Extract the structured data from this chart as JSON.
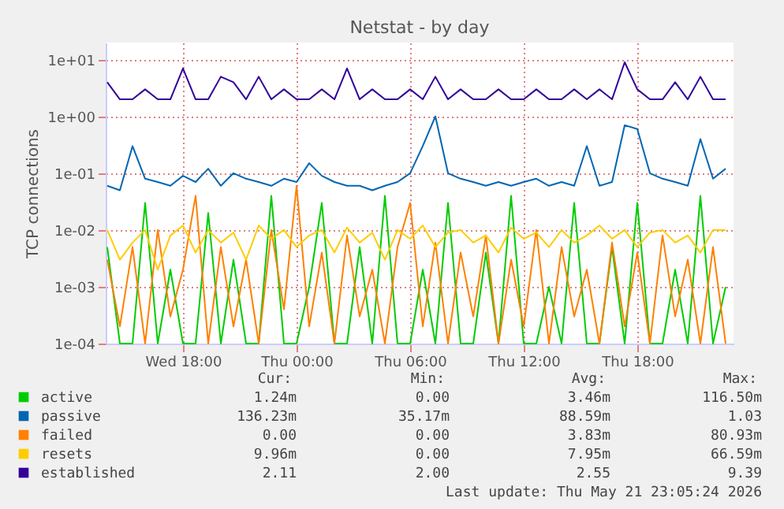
{
  "chart_data": {
    "type": "line",
    "title": "Netstat - by day",
    "ylabel": "TCP connections",
    "log": true,
    "grid": true,
    "legend": "bottom",
    "xlim": [
      "2026-05-20T13:55",
      "2026-05-21T23:05"
    ],
    "xticks": [
      {
        "value": "2026-05-20T18:00",
        "label": "Wed 18:00"
      },
      {
        "value": "2026-05-21T00:00",
        "label": "Thu 00:00"
      },
      {
        "value": "2026-05-21T06:00",
        "label": "Thu 06:00"
      },
      {
        "value": "2026-05-21T12:00",
        "label": "Thu 12:00"
      },
      {
        "value": "2026-05-21T18:00",
        "label": "Thu 18:00"
      }
    ],
    "ylim": [
      0.0001,
      20
    ],
    "yticks": [
      {
        "value": 0.0001,
        "label": "1e-04"
      },
      {
        "value": 0.001,
        "label": "1e-03"
      },
      {
        "value": 0.01,
        "label": "1e-02"
      },
      {
        "value": 0.1,
        "label": "1e-01"
      },
      {
        "value": 1,
        "label": "1e+00"
      },
      {
        "value": 10,
        "label": "1e+01"
      }
    ],
    "x": [
      "2026-05-20T14:00",
      "2026-05-20T14:40",
      "2026-05-20T15:20",
      "2026-05-20T16:00",
      "2026-05-20T16:40",
      "2026-05-20T17:20",
      "2026-05-20T18:00",
      "2026-05-20T18:40",
      "2026-05-20T19:20",
      "2026-05-20T20:00",
      "2026-05-20T20:40",
      "2026-05-20T21:20",
      "2026-05-20T22:00",
      "2026-05-20T22:40",
      "2026-05-20T23:20",
      "2026-05-21T00:00",
      "2026-05-21T00:40",
      "2026-05-21T01:20",
      "2026-05-21T02:00",
      "2026-05-21T02:40",
      "2026-05-21T03:20",
      "2026-05-21T04:00",
      "2026-05-21T04:40",
      "2026-05-21T05:20",
      "2026-05-21T06:00",
      "2026-05-21T06:40",
      "2026-05-21T07:20",
      "2026-05-21T08:00",
      "2026-05-21T08:40",
      "2026-05-21T09:20",
      "2026-05-21T10:00",
      "2026-05-21T10:40",
      "2026-05-21T11:20",
      "2026-05-21T12:00",
      "2026-05-21T12:40",
      "2026-05-21T13:20",
      "2026-05-21T14:00",
      "2026-05-21T14:40",
      "2026-05-21T15:20",
      "2026-05-21T16:00",
      "2026-05-21T16:40",
      "2026-05-21T17:20",
      "2026-05-21T18:00",
      "2026-05-21T18:40",
      "2026-05-21T19:20",
      "2026-05-21T20:00",
      "2026-05-21T20:40",
      "2026-05-21T21:20",
      "2026-05-21T22:00",
      "2026-05-21T22:40"
    ],
    "series": [
      {
        "name": "active",
        "color": "#00cc00",
        "values": [
          0.005,
          0.0001,
          0.0001,
          0.03,
          0.0001,
          0.002,
          0.0001,
          0.0001,
          0.02,
          0.0001,
          0.003,
          0.0001,
          0.0001,
          0.04,
          0.0001,
          0.0001,
          0.001,
          0.03,
          0.0001,
          0.0001,
          0.005,
          0.0001,
          0.04,
          0.0001,
          0.0001,
          0.002,
          0.0001,
          0.03,
          0.0001,
          0.0001,
          0.004,
          0.0001,
          0.04,
          0.0001,
          0.0001,
          0.001,
          0.0001,
          0.03,
          0.0001,
          0.0001,
          0.005,
          0.0001,
          0.03,
          0.0001,
          0.0001,
          0.002,
          0.0001,
          0.04,
          0.0001,
          0.001
        ]
      },
      {
        "name": "passive",
        "color": "#0066b3",
        "values": [
          0.06,
          0.05,
          0.3,
          0.08,
          0.07,
          0.06,
          0.09,
          0.07,
          0.12,
          0.06,
          0.1,
          0.08,
          0.07,
          0.06,
          0.08,
          0.07,
          0.15,
          0.09,
          0.07,
          0.06,
          0.06,
          0.05,
          0.06,
          0.07,
          0.1,
          0.3,
          1.0,
          0.1,
          0.08,
          0.07,
          0.06,
          0.07,
          0.06,
          0.07,
          0.08,
          0.06,
          0.07,
          0.06,
          0.3,
          0.06,
          0.07,
          0.7,
          0.6,
          0.1,
          0.08,
          0.07,
          0.06,
          0.4,
          0.08,
          0.12
        ]
      },
      {
        "name": "failed",
        "color": "#ff8000",
        "values": [
          0.003,
          0.0002,
          0.005,
          0.0001,
          0.01,
          0.0003,
          0.002,
          0.04,
          0.0001,
          0.005,
          0.0002,
          0.003,
          0.0001,
          0.01,
          0.0004,
          0.06,
          0.0002,
          0.004,
          0.0001,
          0.008,
          0.0003,
          0.002,
          0.0001,
          0.005,
          0.03,
          0.0002,
          0.006,
          0.0001,
          0.004,
          0.0003,
          0.008,
          0.0001,
          0.003,
          0.0002,
          0.01,
          0.0001,
          0.005,
          0.0003,
          0.002,
          0.0001,
          0.006,
          0.0002,
          0.004,
          0.0001,
          0.008,
          0.0003,
          0.003,
          0.0001,
          0.005,
          0.0001
        ]
      },
      {
        "name": "resets",
        "color": "#ffcc00",
        "values": [
          0.01,
          0.003,
          0.006,
          0.01,
          0.002,
          0.008,
          0.012,
          0.004,
          0.01,
          0.006,
          0.009,
          0.003,
          0.012,
          0.007,
          0.01,
          0.005,
          0.008,
          0.01,
          0.004,
          0.011,
          0.006,
          0.009,
          0.003,
          0.01,
          0.007,
          0.012,
          0.005,
          0.009,
          0.01,
          0.006,
          0.008,
          0.004,
          0.011,
          0.007,
          0.009,
          0.005,
          0.01,
          0.006,
          0.008,
          0.012,
          0.007,
          0.01,
          0.005,
          0.009,
          0.01,
          0.006,
          0.008,
          0.004,
          0.01,
          0.01
        ]
      },
      {
        "name": "established",
        "color": "#330099",
        "values": [
          4,
          2,
          2,
          3,
          2,
          2,
          7,
          2,
          2,
          5,
          4,
          2,
          5,
          2,
          3,
          2,
          2,
          3,
          2,
          7,
          2,
          3,
          2,
          2,
          3,
          2,
          5,
          2,
          3,
          2,
          2,
          3,
          2,
          2,
          3,
          2,
          2,
          3,
          2,
          3,
          2,
          9,
          3,
          2,
          2,
          4,
          2,
          5,
          2,
          2
        ]
      }
    ],
    "annotations": [
      "Cur:",
      "Min:",
      "Avg:",
      "Max:",
      "1.24m",
      "0.00",
      "3.46m",
      "116.50m",
      "136.23m",
      "35.17m",
      "88.59m",
      "1.03",
      "0.00",
      "0.00",
      "3.83m",
      "80.93m",
      "9.96m",
      "0.00",
      "7.95m",
      "66.59m",
      "2.11",
      "2.00",
      "2.55",
      "9.39",
      "Last update: Thu May 21 23:05:24 2026"
    ]
  }
}
